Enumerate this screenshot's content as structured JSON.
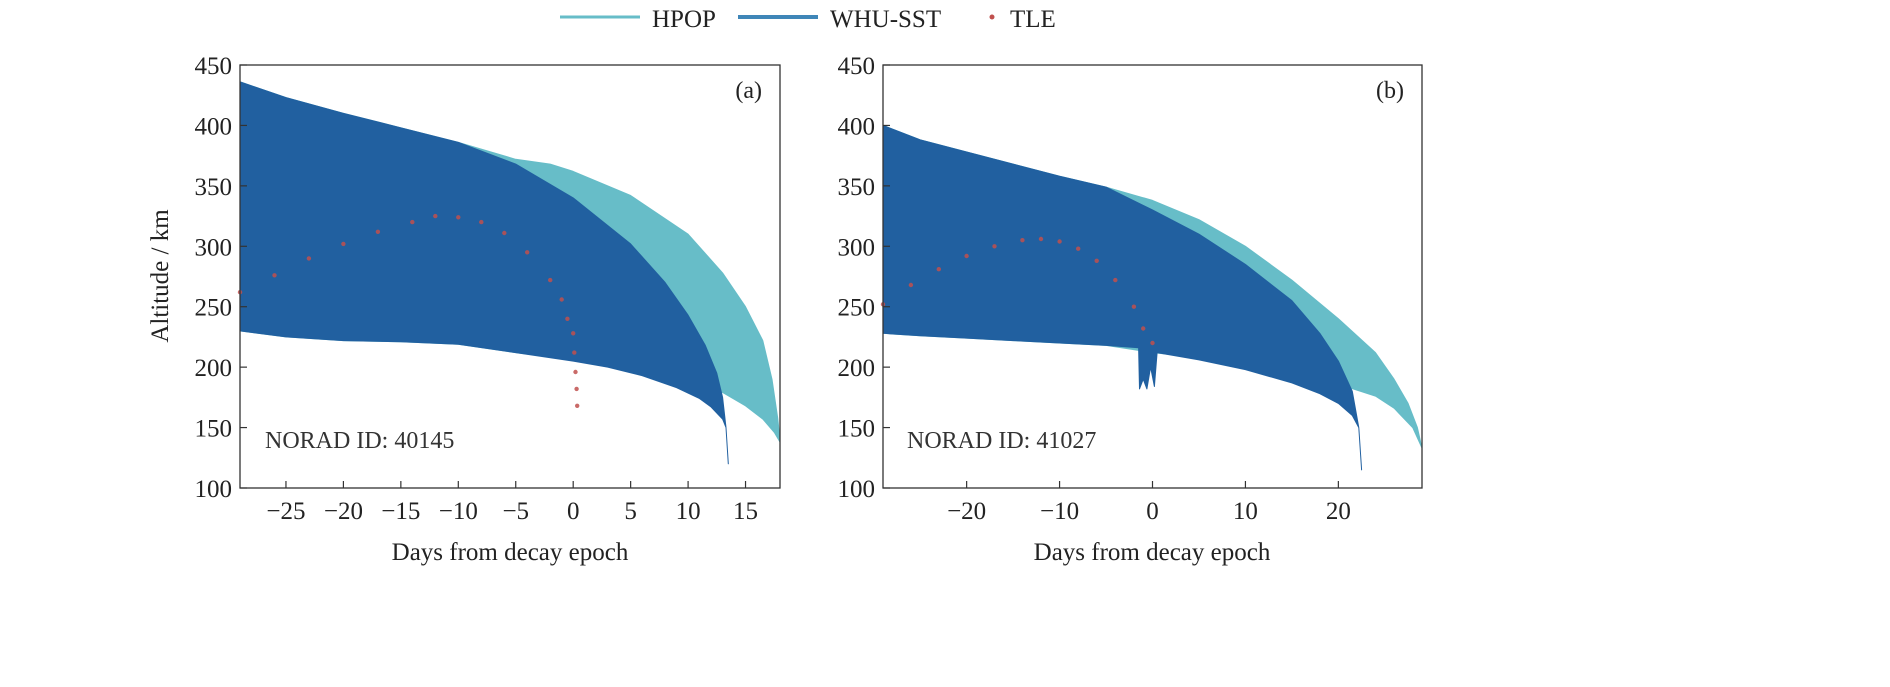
{
  "legend": {
    "entries": [
      {
        "label": "HPOP",
        "color": "#67bdc8",
        "kind": "line"
      },
      {
        "label": "WHU-SST",
        "color": "#3f86b8",
        "kind": "line"
      },
      {
        "label": "TLE",
        "color": "#c0504d",
        "kind": "dot"
      }
    ],
    "placement": "top-center"
  },
  "colors": {
    "hpop": "#67bdc8",
    "whu": "#2160a0",
    "tle": "#c0504d"
  },
  "chart_data": [
    {
      "type": "area",
      "panel_label": "(a)",
      "annotation": "NORAD ID: 40145",
      "xlabel": "Days from decay epoch",
      "ylabel": "Altitude / km",
      "xlim": [
        -29,
        18
      ],
      "ylim": [
        100,
        450
      ],
      "xticks": [
        -25,
        -20,
        -15,
        -10,
        -5,
        0,
        5,
        10,
        15
      ],
      "yticks": [
        100,
        150,
        200,
        250,
        300,
        350,
        400,
        450
      ],
      "grid": false,
      "series": [
        {
          "name": "HPOP",
          "upper": [
            [
              -29,
              436
            ],
            [
              -25,
              423
            ],
            [
              -20,
              410
            ],
            [
              -15,
              398
            ],
            [
              -10,
              386
            ],
            [
              -5,
              372
            ],
            [
              -2,
              368
            ],
            [
              0,
              362
            ],
            [
              5,
              342
            ],
            [
              10,
              310
            ],
            [
              13,
              278
            ],
            [
              15,
              250
            ],
            [
              16.5,
              222
            ],
            [
              17.3,
              190
            ],
            [
              17.8,
              158
            ],
            [
              18,
              140
            ]
          ],
          "lower": [
            [
              -29,
              230
            ],
            [
              -25,
              225
            ],
            [
              -20,
              222
            ],
            [
              -15,
              221
            ],
            [
              -10,
              219
            ],
            [
              -5,
              212
            ],
            [
              0,
              206
            ],
            [
              5,
              200
            ],
            [
              10,
              188
            ],
            [
              13,
              179
            ],
            [
              15,
              168
            ],
            [
              16.5,
              157
            ],
            [
              17.5,
              146
            ],
            [
              18,
              138
            ]
          ]
        },
        {
          "name": "WHU-SST",
          "upper": [
            [
              -29,
              436
            ],
            [
              -25,
              423
            ],
            [
              -20,
              410
            ],
            [
              -15,
              398
            ],
            [
              -10,
              386
            ],
            [
              -5,
              368
            ],
            [
              0,
              340
            ],
            [
              5,
              302
            ],
            [
              8,
              270
            ],
            [
              10,
              243
            ],
            [
              11.5,
              218
            ],
            [
              12.5,
              195
            ],
            [
              13,
              175
            ],
            [
              13.3,
              150
            ],
            [
              13.5,
              120
            ]
          ],
          "lower": [
            [
              -29,
              230
            ],
            [
              -25,
              225
            ],
            [
              -20,
              222
            ],
            [
              -15,
              221
            ],
            [
              -10,
              219
            ],
            [
              -5,
              212
            ],
            [
              0,
              205
            ],
            [
              3,
              200
            ],
            [
              6,
              193
            ],
            [
              9,
              183
            ],
            [
              11,
              174
            ],
            [
              12,
              167
            ],
            [
              13,
              157
            ],
            [
              13.3,
              150
            ],
            [
              13.5,
              120
            ]
          ]
        },
        {
          "name": "TLE",
          "points": [
            [
              -29,
              262
            ],
            [
              -26,
              276
            ],
            [
              -23,
              290
            ],
            [
              -20,
              302
            ],
            [
              -17,
              312
            ],
            [
              -14,
              320
            ],
            [
              -12,
              325
            ],
            [
              -10,
              324
            ],
            [
              -8,
              320
            ],
            [
              -6,
              311
            ],
            [
              -4,
              295
            ],
            [
              -2,
              272
            ],
            [
              -1,
              256
            ],
            [
              -0.5,
              240
            ],
            [
              0,
              228
            ],
            [
              0.1,
              212
            ],
            [
              0.2,
              196
            ],
            [
              0.3,
              182
            ],
            [
              0.35,
              168
            ]
          ]
        }
      ]
    },
    {
      "type": "area",
      "panel_label": "(b)",
      "annotation": "NORAD ID: 41027",
      "xlabel": "Days from decay epoch",
      "ylabel": "",
      "xlim": [
        -29,
        29
      ],
      "ylim": [
        100,
        450
      ],
      "xticks": [
        -20,
        -10,
        0,
        10,
        20
      ],
      "yticks": [
        100,
        150,
        200,
        250,
        300,
        350,
        400,
        450
      ],
      "grid": false,
      "series": [
        {
          "name": "HPOP",
          "upper": [
            [
              -29,
              400
            ],
            [
              -25,
              388
            ],
            [
              -20,
              378
            ],
            [
              -15,
              368
            ],
            [
              -10,
              358
            ],
            [
              -5,
              349
            ],
            [
              0,
              338
            ],
            [
              5,
              322
            ],
            [
              10,
              300
            ],
            [
              15,
              272
            ],
            [
              20,
              240
            ],
            [
              24,
              212
            ],
            [
              26,
              190
            ],
            [
              27.5,
              170
            ],
            [
              28.5,
              150
            ],
            [
              29,
              133
            ]
          ],
          "lower": [
            [
              -29,
              228
            ],
            [
              -25,
              226
            ],
            [
              -20,
              224
            ],
            [
              -15,
              222
            ],
            [
              -10,
              220
            ],
            [
              -5,
              218
            ],
            [
              0,
              212
            ],
            [
              5,
              208
            ],
            [
              10,
              202
            ],
            [
              15,
              195
            ],
            [
              20,
              186
            ],
            [
              24,
              176
            ],
            [
              26,
              166
            ],
            [
              28,
              150
            ],
            [
              29,
              133
            ]
          ]
        },
        {
          "name": "WHU-SST",
          "upper": [
            [
              -29,
              400
            ],
            [
              -25,
              388
            ],
            [
              -20,
              378
            ],
            [
              -15,
              368
            ],
            [
              -10,
              358
            ],
            [
              -5,
              349
            ],
            [
              0,
              330
            ],
            [
              5,
              310
            ],
            [
              10,
              285
            ],
            [
              15,
              255
            ],
            [
              18,
              228
            ],
            [
              20,
              205
            ],
            [
              21.5,
              180
            ],
            [
              22.2,
              150
            ],
            [
              22.5,
              115
            ]
          ],
          "lower": [
            [
              -29,
              228
            ],
            [
              -25,
              226
            ],
            [
              -20,
              224
            ],
            [
              -15,
              222
            ],
            [
              -10,
              220
            ],
            [
              -5,
              218
            ],
            [
              -1.5,
              216
            ],
            [
              -1.4,
              182
            ],
            [
              -1.0,
              190
            ],
            [
              -0.6,
              182
            ],
            [
              -0.2,
              200
            ],
            [
              0.2,
              184
            ],
            [
              0.5,
              212
            ],
            [
              5,
              206
            ],
            [
              10,
              198
            ],
            [
              15,
              187
            ],
            [
              18,
              178
            ],
            [
              20,
              170
            ],
            [
              21.5,
              160
            ],
            [
              22.2,
              150
            ],
            [
              22.5,
              115
            ]
          ]
        },
        {
          "name": "TLE",
          "points": [
            [
              -29,
              252
            ],
            [
              -26,
              268
            ],
            [
              -23,
              281
            ],
            [
              -20,
              292
            ],
            [
              -17,
              300
            ],
            [
              -14,
              305
            ],
            [
              -12,
              306
            ],
            [
              -10,
              304
            ],
            [
              -8,
              298
            ],
            [
              -6,
              288
            ],
            [
              -4,
              272
            ],
            [
              -2,
              250
            ],
            [
              -1,
              232
            ],
            [
              0,
              220
            ]
          ]
        }
      ]
    }
  ]
}
